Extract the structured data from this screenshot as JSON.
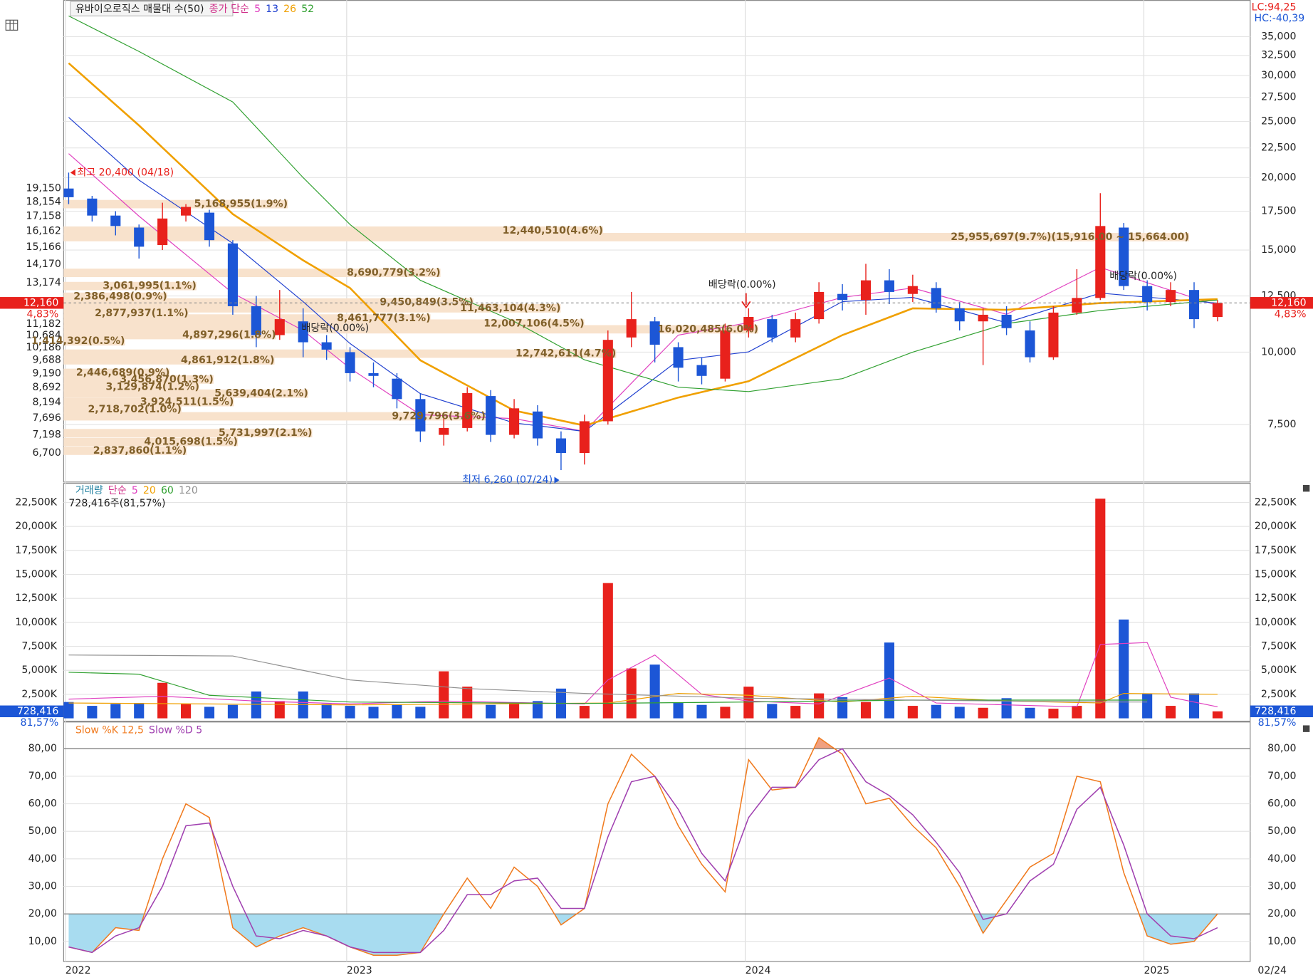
{
  "chart_data": [
    {
      "type": "candlestick",
      "title": "유바이오로직스 매물대 수(50)",
      "legend_title": "종가 단순",
      "lc_label": "LC:94,25",
      "hc_label": "HC:-40,39",
      "categories": [
        "2022",
        null,
        null,
        null,
        null,
        null,
        null,
        null,
        null,
        null,
        null,
        null,
        "2023",
        null,
        null,
        null,
        null,
        null,
        null,
        null,
        null,
        null,
        null,
        null,
        null,
        null,
        null,
        null,
        null,
        "2024",
        null,
        null,
        null,
        null,
        null,
        null,
        null,
        null,
        null,
        null,
        null,
        null,
        null,
        null,
        null,
        null,
        "2025",
        null,
        null,
        null
      ],
      "open": [
        19150,
        18400,
        17200,
        16400,
        15300,
        17200,
        17400,
        15400,
        12000,
        10700,
        11300,
        10400,
        10000,
        9200,
        9000,
        8300,
        7200,
        7400,
        8400,
        7200,
        7900,
        7100,
        6700,
        7600,
        10600,
        11300,
        10200,
        9500,
        9000,
        10900,
        11400,
        10600,
        11400,
        12600,
        12300,
        13300,
        12600,
        12900,
        11900,
        11300,
        11600,
        10900,
        9800,
        11700,
        12400,
        16400,
        13000,
        12200,
        12800,
        11500
      ],
      "high": [
        20400,
        18600,
        17500,
        16600,
        18100,
        18000,
        17600,
        15600,
        12500,
        12800,
        11900,
        10700,
        10200,
        9600,
        9200,
        8500,
        7700,
        8700,
        8600,
        8300,
        8100,
        7300,
        7800,
        10900,
        12700,
        11500,
        10400,
        9800,
        11200,
        11900,
        11600,
        11700,
        13200,
        13100,
        14200,
        13900,
        13600,
        13200,
        12200,
        11900,
        12000,
        11300,
        12000,
        13900,
        18800,
        16700,
        13300,
        13200,
        13200,
        12300
      ],
      "low": [
        18000,
        16800,
        15900,
        14500,
        15000,
        16800,
        15200,
        11600,
        10200,
        10500,
        9800,
        9700,
        8900,
        8700,
        8000,
        7000,
        6900,
        7300,
        7000,
        7100,
        6900,
        6260,
        6400,
        7500,
        10200,
        9600,
        8900,
        8800,
        8900,
        10600,
        10400,
        10400,
        11200,
        11800,
        11600,
        12100,
        12200,
        11700,
        10900,
        9500,
        10700,
        9600,
        9700,
        11600,
        12300,
        12800,
        11800,
        12000,
        11000,
        11300
      ],
      "close": [
        18500,
        17200,
        16500,
        15200,
        17000,
        17800,
        15600,
        12000,
        10700,
        11400,
        10400,
        10100,
        9200,
        9100,
        8300,
        7300,
        7400,
        8500,
        7200,
        8000,
        7100,
        6700,
        7600,
        10500,
        11400,
        10300,
        9400,
        9100,
        10900,
        11500,
        10600,
        11400,
        12700,
        12300,
        13300,
        12700,
        13000,
        11900,
        11300,
        11600,
        11000,
        9800,
        11700,
        12400,
        16500,
        13000,
        12200,
        12800,
        11400,
        12160
      ],
      "up_color": "#e8211c",
      "down_color": "#1c56d6",
      "log_scale": true,
      "grid": true,
      "ylim": [
        5980,
        40480
      ],
      "yticks": [
        {
          "value": 7500,
          "label": "7,500"
        },
        {
          "value": 10000,
          "label": "10,000"
        },
        {
          "value": 12500,
          "label": "12,500"
        },
        {
          "value": 15000,
          "label": "15,000"
        },
        {
          "value": 17500,
          "label": "17,500"
        },
        {
          "value": 20000,
          "label": "20,000"
        },
        {
          "value": 22500,
          "label": "22,500"
        },
        {
          "value": 25000,
          "label": "25,000"
        },
        {
          "value": 27500,
          "label": "27,500"
        },
        {
          "value": 30000,
          "label": "30,000"
        },
        {
          "value": 32500,
          "label": "32,500"
        },
        {
          "value": 35000,
          "label": "35,000"
        }
      ],
      "moving_averages": [
        {
          "name": "5",
          "color": "#e040c0",
          "x": [
            0,
            3,
            7,
            10,
            12,
            15,
            19,
            22,
            26,
            29,
            33,
            36,
            40,
            44,
            49
          ],
          "values": [
            22000,
            17160,
            12640,
            10900,
            9380,
            7800,
            7680,
            7300,
            10700,
            11240,
            12430,
            12900,
            11620,
            14000,
            12030
          ]
        },
        {
          "name": "13",
          "color": "#2040d0",
          "x": [
            0,
            3,
            7,
            10,
            12,
            15,
            19,
            22,
            26,
            29,
            33,
            36,
            40,
            44,
            49
          ],
          "values": [
            25400,
            19800,
            15400,
            12220,
            10350,
            8480,
            7550,
            7300,
            9680,
            10010,
            12220,
            12430,
            11240,
            12640,
            12150
          ]
        },
        {
          "name": "26",
          "color": "#f0a000",
          "x": [
            0,
            3,
            7,
            10,
            12,
            15,
            19,
            22,
            26,
            29,
            33,
            36,
            40,
            44,
            49
          ],
          "values": [
            31500,
            24600,
            17300,
            14400,
            12900,
            9680,
            7930,
            7470,
            8350,
            8910,
            10700,
            11900,
            11830,
            12150,
            12340
          ]
        },
        {
          "name": "52",
          "color": "#30a030",
          "x": [
            0,
            3,
            7,
            10,
            12,
            15,
            19,
            22,
            26,
            29,
            33,
            36,
            40,
            44,
            49
          ],
          "values": [
            38000,
            33000,
            27000,
            20000,
            16600,
            13300,
            11300,
            9700,
            8700,
            8550,
            9000,
            10000,
            11200,
            11800,
            12300
          ]
        }
      ],
      "profile": {
        "levels": [
          {
            "value": 19150,
            "label": "19,150"
          },
          {
            "value": 18154,
            "label": "18,154"
          },
          {
            "value": 17158,
            "label": "17,158"
          },
          {
            "value": 16162,
            "label": "16,162"
          },
          {
            "value": 15166,
            "label": "15,166"
          },
          {
            "value": 14170,
            "label": "14,170"
          },
          {
            "value": 13174,
            "label": "13,174"
          },
          {
            "value": 11182,
            "label": "11,182"
          },
          {
            "value": 10684,
            "label": "10,684"
          },
          {
            "value": 10186,
            "label": "10,186"
          },
          {
            "value": 9688,
            "label": "9,688"
          },
          {
            "value": 9190,
            "label": "9,190"
          },
          {
            "value": 8692,
            "label": "8,692"
          },
          {
            "value": 8194,
            "label": "8,194"
          },
          {
            "value": 7696,
            "label": "7,696"
          },
          {
            "value": 7198,
            "label": "7,198"
          },
          {
            "value": 6700,
            "label": "6,700"
          }
        ],
        "prices": [
          18000,
          16200,
          15790,
          13700,
          13000,
          12460,
          12180,
          11900,
          11660,
          11430,
          11200,
          10950,
          10700,
          10440,
          9940,
          9680,
          9210,
          8970,
          8700,
          8480,
          8200,
          7960,
          7750,
          7250,
          7000,
          6760
        ],
        "values": [
          5168955,
          12440510,
          25955697,
          8690779,
          3061995,
          2386498,
          9450849,
          11463104,
          2877937,
          8461777,
          12007106,
          16020485,
          4897296,
          1414392,
          12742611,
          4861912,
          2446689,
          3456870,
          3129874,
          5639404,
          3924511,
          2718702,
          9729796,
          5731997,
          4015698,
          2837860
        ],
        "value_labels": [
          "5,168,955(1.9%)",
          "12,440,510(4.6%)",
          "25,955,697(9.7%)(15,916.00 ~ 15,664.00)",
          "8,690,779(3.2%)",
          "3,061,995(1.1%)",
          "2,386,498(0.9%)",
          "9,450,849(3.5%)",
          "11,463,104(4.3%)",
          "2,877,937(1.1%)",
          "8,461,777(3.1%)",
          "12,007,106(4.5%)",
          "16,020,485(6.0%)",
          "4,897,296(1.8%)",
          "1,414,392(0.5%)",
          "12,742,611(4.7%)",
          "4,861,912(1.8%)",
          "2,446,689(0.9%)",
          "3,456,870(1.3%)",
          "3,129,874(1.2%)",
          "5,639,404(2.1%)",
          "3,924,511(1.5%)",
          "2,718,702(1.0%)",
          "9,729,796(3.6%)",
          "5,731,997(2.1%)",
          "4,015,698(1.5%)",
          "2,837,860(1.1%)"
        ],
        "color": "#f8e2cc"
      },
      "high_label": "최고 20,400 (04/18)",
      "low_label": "최저 6,260 (07/24)",
      "dividend_labels": [
        "배당락(0.00%)",
        "배당락(0.00%)",
        "배당락(0.00%)"
      ],
      "last_price_label": "12,160",
      "change_label": "4,83%"
    },
    {
      "type": "volume",
      "title": "거래량",
      "legend_title": "단순",
      "values": [
        1700,
        1300,
        1500,
        1600,
        3700,
        1500,
        1200,
        1400,
        2800,
        1800,
        2800,
        1500,
        1300,
        1200,
        1400,
        1200,
        4900,
        3300,
        1400,
        1600,
        1800,
        3100,
        1300,
        14100,
        5200,
        5600,
        1600,
        1400,
        1200,
        3300,
        1500,
        1300,
        2600,
        2200,
        1700,
        7900,
        1300,
        1400,
        1200,
        1100,
        2100,
        1100,
        1000,
        1300,
        22900,
        10300,
        2600,
        1300,
        2600,
        728.416
      ],
      "last_value_label": "728,416",
      "summary_label": "728,416주(81,57%)",
      "ratio_label": "81,57%",
      "ylim": [
        0,
        24500
      ],
      "yticks": [
        {
          "value": 2500,
          "label": "2,500K"
        },
        {
          "value": 5000,
          "label": "5,000K"
        },
        {
          "value": 7500,
          "label": "7,500K"
        },
        {
          "value": 10000,
          "label": "10,000K"
        },
        {
          "value": 12500,
          "label": "12,500K"
        },
        {
          "value": 15000,
          "label": "15,000K"
        },
        {
          "value": 17500,
          "label": "17,500K"
        },
        {
          "value": 20000,
          "label": "20,000K"
        },
        {
          "value": 22500,
          "label": "22,500K"
        }
      ],
      "moving_averages": [
        {
          "name": "5",
          "color": "#e040c0",
          "x": [
            0,
            4,
            8,
            12,
            16,
            22,
            23,
            25,
            27,
            29,
            32,
            35,
            37,
            43,
            44,
            46,
            47,
            49
          ],
          "values": [
            2000,
            2300,
            1800,
            1500,
            1800,
            1500,
            4000,
            6600,
            2500,
            1800,
            1500,
            4200,
            1600,
            1200,
            7700,
            7900,
            2200,
            1200
          ]
        },
        {
          "name": "20",
          "color": "#f0a000",
          "x": [
            0,
            12,
            23,
            26,
            29,
            33,
            36,
            40,
            44,
            45,
            49
          ],
          "values": [
            1600,
            1400,
            1600,
            2600,
            2400,
            1700,
            2300,
            1800,
            1600,
            2600,
            2500
          ]
        },
        {
          "name": "60",
          "color": "#30a030",
          "x": [
            0,
            3,
            6,
            12,
            22,
            29,
            36,
            44,
            46
          ],
          "values": [
            4800,
            4600,
            2400,
            1700,
            1550,
            1700,
            1900,
            1900,
            1900
          ]
        },
        {
          "name": "120",
          "color": "#909090",
          "x": [
            0,
            7,
            10,
            12,
            17,
            22,
            29,
            36,
            44,
            46
          ],
          "values": [
            6600,
            6500,
            5000,
            4000,
            3100,
            2600,
            2100,
            1900,
            1700,
            1700
          ]
        }
      ]
    },
    {
      "type": "stochastic",
      "series": [
        {
          "name": "Slow %K 12,5",
          "color": "#f07a1e",
          "values": [
            8,
            6,
            15,
            14,
            40,
            60,
            55,
            15,
            8,
            12,
            15,
            12,
            8,
            5,
            5,
            6,
            20,
            33,
            22,
            37,
            30,
            16,
            22,
            60,
            78,
            70,
            52,
            38,
            28,
            76,
            65,
            66,
            84,
            78,
            60,
            62,
            52,
            44,
            30,
            13,
            25,
            37,
            42,
            70,
            68,
            35,
            12,
            9,
            10,
            20
          ]
        },
        {
          "name": "Slow %D 5",
          "color": "#a040b0",
          "values": [
            8,
            6,
            12,
            15,
            30,
            52,
            53,
            30,
            12,
            11,
            14,
            12,
            8,
            6,
            6,
            6,
            14,
            27,
            27,
            32,
            33,
            22,
            22,
            48,
            68,
            70,
            58,
            42,
            32,
            55,
            66,
            66,
            76,
            80,
            68,
            63,
            56,
            46,
            35,
            18,
            20,
            32,
            38,
            58,
            66,
            45,
            20,
            12,
            11,
            15
          ]
        }
      ],
      "ylim": [
        2.7,
        89.7
      ],
      "yticks": [
        {
          "value": 10,
          "label": "10,00"
        },
        {
          "value": 20,
          "label": "20,00"
        },
        {
          "value": 30,
          "label": "30,00"
        },
        {
          "value": 40,
          "label": "40,00"
        },
        {
          "value": 50,
          "label": "50,00"
        },
        {
          "value": 60,
          "label": "60,00"
        },
        {
          "value": 70,
          "label": "70,00"
        },
        {
          "value": 80,
          "label": "80,00"
        }
      ],
      "levels": [
        20,
        80
      ],
      "fill_below": "#a8dcf0",
      "fill_above": "#f0a080"
    }
  ],
  "last_date": "02/24"
}
